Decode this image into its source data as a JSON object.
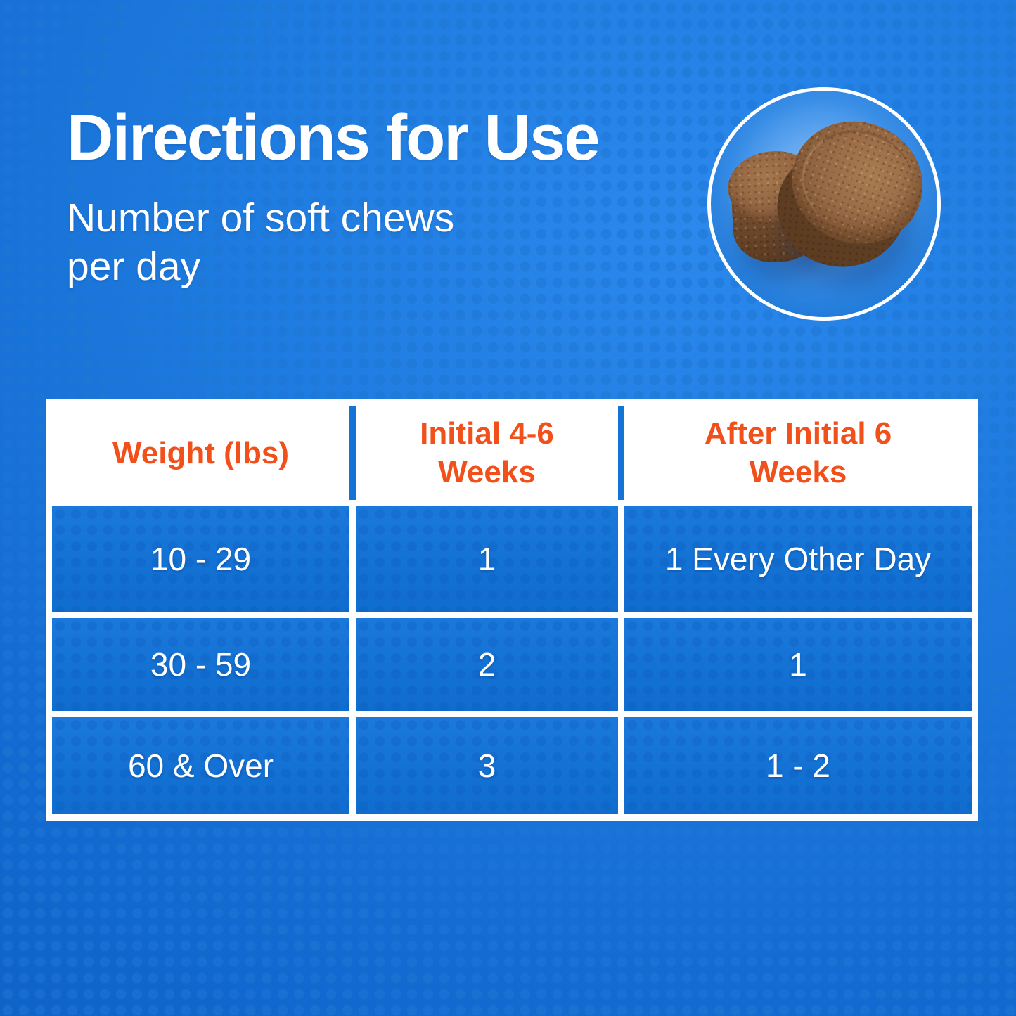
{
  "header": {
    "title": "Directions for Use",
    "subtitle_line1": "Number of soft chews",
    "subtitle_line2": "per day"
  },
  "badge": {
    "icon": "soft-chews-photo"
  },
  "table": {
    "columns": [
      {
        "line1": "Weight (lbs)",
        "line2": ""
      },
      {
        "line1": "Initial 4-6",
        "line2": "Weeks"
      },
      {
        "line1": "After Initial 6",
        "line2": "Weeks"
      }
    ],
    "rows": [
      {
        "cells": [
          "10 - 29",
          "1",
          "1 Every Other Day"
        ]
      },
      {
        "cells": [
          "30 - 59",
          "2",
          "1"
        ]
      },
      {
        "cells": [
          "60 & Over",
          "3",
          "1 - 2"
        ]
      }
    ]
  },
  "colors": {
    "header_text_orange": "#F2501B",
    "table_cell_blue": "#1573D5",
    "background_blue": "#1269D0",
    "text_white": "#FFFFFF"
  }
}
